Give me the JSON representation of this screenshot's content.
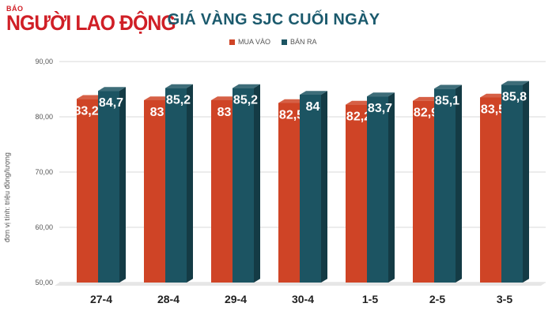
{
  "header": {
    "logo_top": "BÁO",
    "logo_name": "NGƯỜI LAO ĐỘNG",
    "title": "GIÁ VÀNG SJC CUỐI NGÀY"
  },
  "chart_data": {
    "type": "bar",
    "title": "GIÁ VÀNG SJC CUỐI NGÀY",
    "ylabel": "đơn vị tính: triệu đồng/lượng",
    "xlabel": "",
    "categories": [
      "27-4",
      "28-4",
      "29-4",
      "30-4",
      "1-5",
      "2-5",
      "3-5"
    ],
    "series": [
      {
        "name": "MUA VÀO",
        "color": "#cf4426",
        "values": [
          83.25,
          83,
          83,
          82.5,
          82.2,
          82.9,
          83.5
        ],
        "labels": [
          "83,25",
          "83",
          "83",
          "82,5",
          "82,2",
          "82,9",
          "83,5"
        ]
      },
      {
        "name": "BÁN RA",
        "color": "#1c5462",
        "values": [
          84.7,
          85.2,
          85.2,
          84,
          83.7,
          85.1,
          85.8
        ],
        "labels": [
          "84,7",
          "85,2",
          "85,2",
          "84",
          "83,7",
          "85,1",
          "85,8"
        ]
      }
    ],
    "ylim": [
      50,
      90
    ],
    "yticks": [
      "50,00",
      "60,00",
      "70,00",
      "80,00",
      "90,00"
    ],
    "grid": true,
    "legend_position": "top"
  }
}
